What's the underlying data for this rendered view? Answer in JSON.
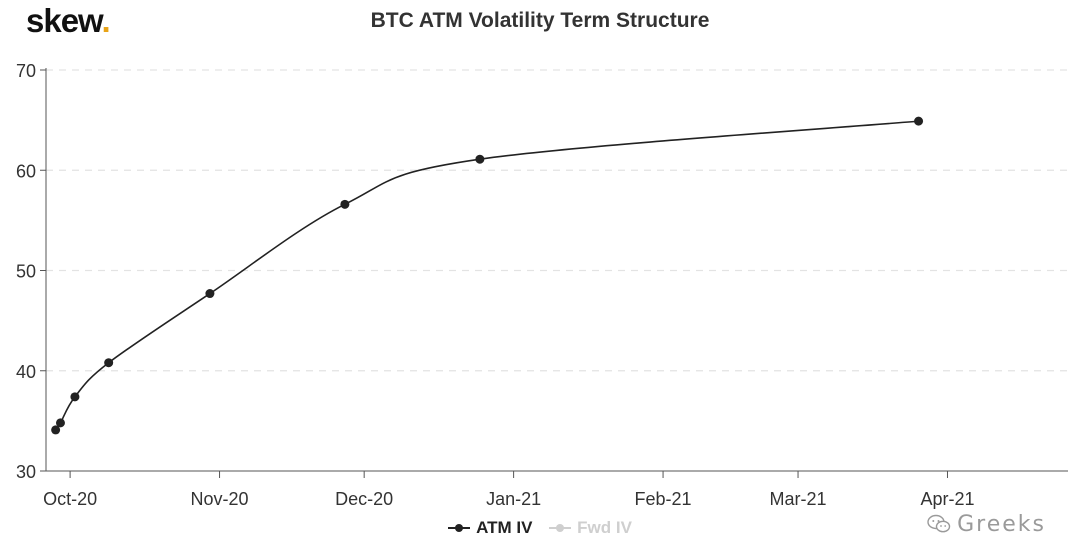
{
  "brand": {
    "name": "skew",
    "dot": ".",
    "accent": "#e8a317"
  },
  "watermark": {
    "text": "Greeks",
    "icon": "wechat-icon"
  },
  "chart_data": {
    "type": "line",
    "title": "BTC ATM Volatility Term Structure",
    "xlabel": "",
    "ylabel": "",
    "x_range": [
      "2020-09-26",
      "2021-04-26"
    ],
    "ylim": [
      30,
      70
    ],
    "yticks": [
      30,
      40,
      50,
      60,
      70
    ],
    "xticks": [
      {
        "date": "2020-10-01",
        "label": "Oct-20"
      },
      {
        "date": "2020-11-01",
        "label": "Nov-20"
      },
      {
        "date": "2020-12-01",
        "label": "Dec-20"
      },
      {
        "date": "2021-01-01",
        "label": "Jan-21"
      },
      {
        "date": "2021-02-01",
        "label": "Feb-21"
      },
      {
        "date": "2021-03-01",
        "label": "Mar-21"
      },
      {
        "date": "2021-04-01",
        "label": "Apr-21"
      }
    ],
    "grid": "horizontal-dashed",
    "legend_position": "bottom",
    "series": [
      {
        "name": "ATM IV",
        "color": "#222222",
        "x": [
          "2020-09-28",
          "2020-09-29",
          "2020-10-02",
          "2020-10-09",
          "2020-10-30",
          "2020-11-27",
          "2020-12-25",
          "2021-03-26"
        ],
        "values": [
          34.1,
          34.8,
          37.4,
          40.8,
          47.7,
          56.6,
          61.1,
          64.9
        ]
      },
      {
        "name": "Fwd IV",
        "color": "#cfcfcf",
        "hidden": true,
        "x": [],
        "values": []
      }
    ]
  }
}
